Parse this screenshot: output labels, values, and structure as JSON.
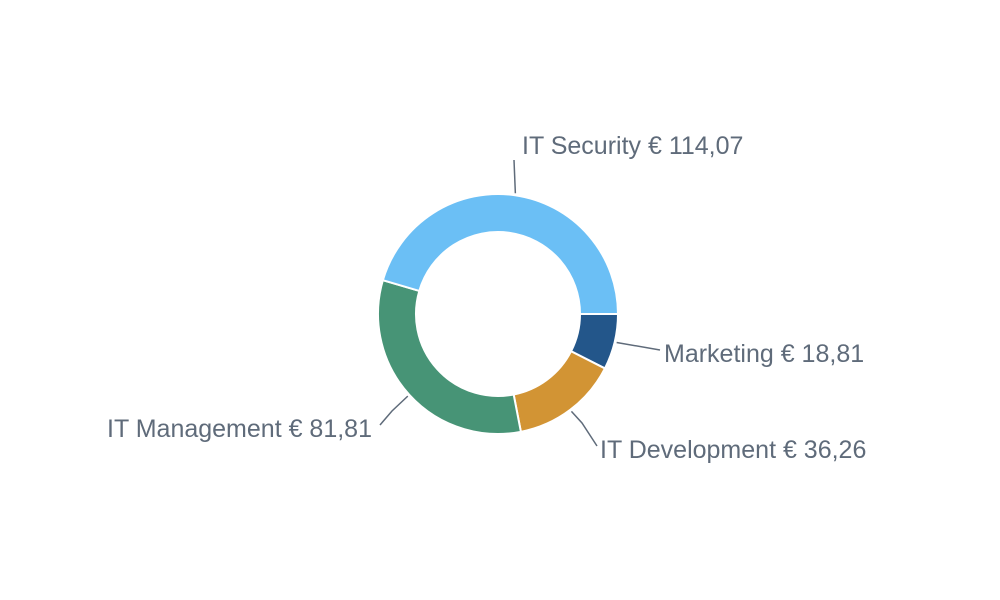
{
  "chart_data": {
    "type": "pie",
    "variant": "donut",
    "title": "",
    "currency_symbol": "€",
    "slices": [
      {
        "name": "Marketing",
        "value": 18.81,
        "display": "18,81",
        "color": "#23568a"
      },
      {
        "name": "IT Development",
        "value": 36.26,
        "display": "36,26",
        "color": "#d29434"
      },
      {
        "name": "IT Management",
        "value": 81.81,
        "display": "81,81",
        "color": "#479476"
      },
      {
        "name": "IT Security",
        "value": 114.07,
        "display": "114,07",
        "color": "#6bbff5"
      }
    ],
    "labels": [
      "Marketing € 18,81",
      "IT Development € 36,26",
      "IT Management € 81,81",
      "IT Security € 114,07"
    ],
    "legend": "none"
  }
}
